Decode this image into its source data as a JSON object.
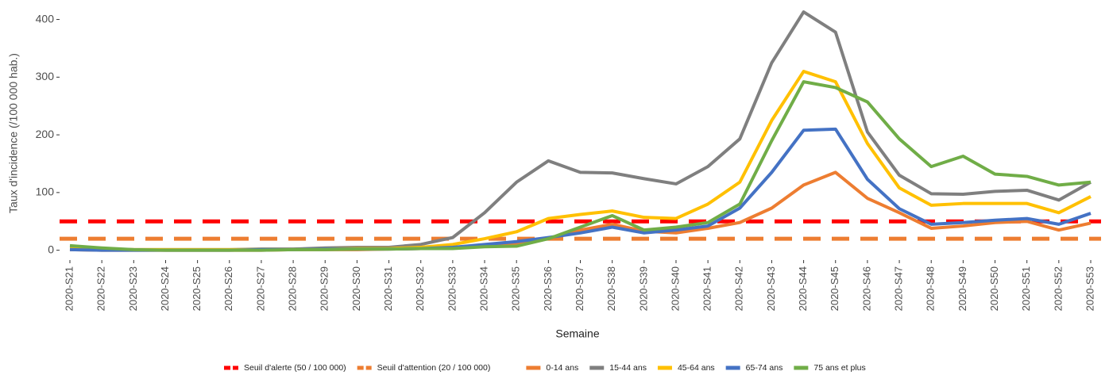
{
  "chart_data": {
    "type": "line",
    "y_label": "Taux d'incidence (/100 000 hab.)",
    "x_label": "Semaine",
    "categories": [
      "2020-S21",
      "2020-S22",
      "2020-S23",
      "2020-S24",
      "2020-S25",
      "2020-S26",
      "2020-S27",
      "2020-S28",
      "2020-S29",
      "2020-S30",
      "2020-S31",
      "2020-S32",
      "2020-S33",
      "2020-S34",
      "2020-S35",
      "2020-S36",
      "2020-S37",
      "2020-S38",
      "2020-S39",
      "2020-S40",
      "2020-S41",
      "2020-S42",
      "2020-S43",
      "2020-S44",
      "2020-S45",
      "2020-S46",
      "2020-S47",
      "2020-S48",
      "2020-S49",
      "2020-S50",
      "2020-S51",
      "2020-S52",
      "2020-S53"
    ],
    "ylim": [
      -17,
      420
    ],
    "yticks": [
      0,
      100,
      200,
      300,
      400
    ],
    "thresholds": [
      {
        "name": "Seuil d'alerte (50 / 100 000)",
        "value": 50,
        "color": "#ff0000"
      },
      {
        "name": "Seuil d'attention (20 / 100 000)",
        "value": 20,
        "color": "#ed7d31"
      }
    ],
    "series": [
      {
        "name": "0-14 ans",
        "color": "#ed7d31",
        "values": [
          1,
          0,
          0,
          0,
          0,
          0,
          0,
          1,
          1,
          1,
          2,
          3,
          5,
          8,
          12,
          20,
          35,
          45,
          33,
          30,
          38,
          48,
          73,
          113,
          135,
          90,
          65,
          38,
          42,
          48,
          50,
          35,
          47
        ]
      },
      {
        "name": "15-44 ans",
        "color": "#7f7f7f",
        "values": [
          3,
          2,
          1,
          1,
          1,
          1,
          2,
          2,
          4,
          5,
          5,
          10,
          22,
          65,
          118,
          155,
          135,
          134,
          124,
          115,
          145,
          193,
          325,
          413,
          378,
          205,
          130,
          98,
          97,
          102,
          104,
          87,
          118
        ]
      },
      {
        "name": "45-64 ans",
        "color": "#ffc000",
        "values": [
          2,
          1,
          1,
          1,
          1,
          1,
          1,
          1,
          2,
          3,
          3,
          5,
          10,
          20,
          32,
          55,
          62,
          68,
          57,
          55,
          80,
          118,
          225,
          310,
          292,
          185,
          108,
          78,
          81,
          81,
          81,
          65,
          93
        ]
      },
      {
        "name": "65-74 ans",
        "color": "#4472c4",
        "values": [
          1,
          0,
          0,
          0,
          0,
          0,
          1,
          1,
          2,
          2,
          2,
          3,
          5,
          10,
          15,
          22,
          30,
          40,
          30,
          35,
          42,
          73,
          135,
          208,
          210,
          123,
          72,
          45,
          48,
          52,
          55,
          45,
          64
        ]
      },
      {
        "name": "75 ans et plus",
        "color": "#70ad47",
        "values": [
          8,
          4,
          1,
          0,
          0,
          0,
          0,
          1,
          1,
          2,
          2,
          3,
          3,
          6,
          7,
          20,
          40,
          60,
          35,
          40,
          48,
          80,
          190,
          292,
          282,
          257,
          193,
          145,
          163,
          132,
          128,
          113,
          118
        ]
      }
    ]
  }
}
